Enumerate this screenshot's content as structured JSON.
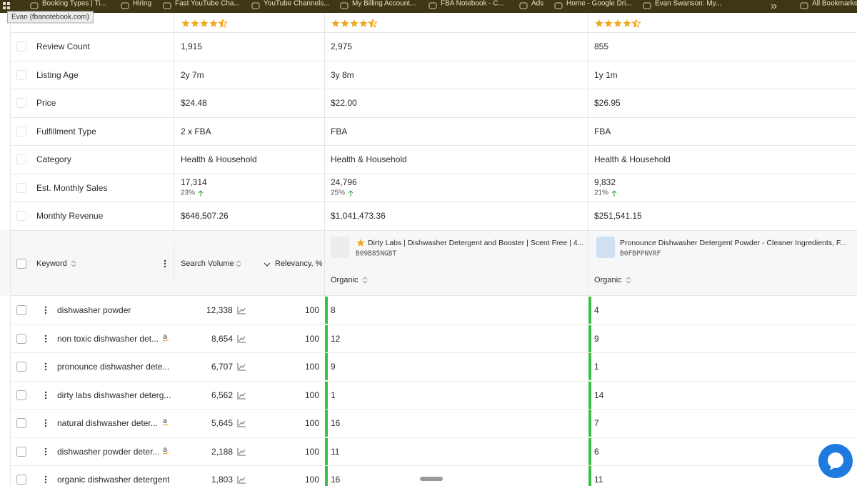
{
  "bookmarks": [
    "Booking Types | Ti...",
    "Hiring",
    "Fast YouTube Cha...",
    "YouTube Channels...",
    "My Billing Account...",
    "FBA Notebook - C...",
    "Ads",
    "Home - Google Dri...",
    "Evan Swanson: My...",
    "All Bookmarks"
  ],
  "tooltip": "Evan (fbanotebook.com)",
  "ratings": [
    "4.5",
    "4.4",
    "4.6"
  ],
  "metrics": [
    {
      "label": "Review Count",
      "values": [
        "1,915",
        "2,975",
        "855"
      ]
    },
    {
      "label": "Listing Age",
      "values": [
        "2y 7m",
        "3y 8m",
        "1y 1m"
      ]
    },
    {
      "label": "Price",
      "values": [
        "$24.48",
        "$22.00",
        "$26.95"
      ]
    },
    {
      "label": "Fulfillment Type",
      "values": [
        "2 x FBA",
        "FBA",
        "FBA"
      ]
    },
    {
      "label": "Category",
      "values": [
        "Health & Household",
        "Health & Household",
        "Health & Household"
      ]
    },
    {
      "label": "Est. Monthly Sales",
      "values": [
        "17,314",
        "24,796",
        "9,832"
      ],
      "changes": [
        "23%",
        "25%",
        "21%"
      ]
    },
    {
      "label": "Monthly Revenue",
      "values": [
        "$646,507.26",
        "$1,041,473.36",
        "$251,541.15"
      ]
    }
  ],
  "columns": {
    "keyword": "Keyword",
    "search_volume": "Search Volume",
    "relevancy": "Relevancy, %"
  },
  "products": [
    {
      "title": "Dirty Labs | Dishwasher Detergent and Booster | Scent Free | 4...",
      "asin": "B09B85NGBT",
      "rank_header": "Organic"
    },
    {
      "title": "Pronounce Dishwasher Detergent Powder - Cleaner Ingredients, F...",
      "asin": "B0FBPPNVRF",
      "rank_header": "Organic"
    }
  ],
  "keywords": [
    {
      "keyword": "dishwasher powder",
      "amazon": false,
      "search_volume": "12,338",
      "relevancy": "100",
      "ranks": [
        "8",
        "4"
      ]
    },
    {
      "keyword": "non toxic dishwasher det...",
      "amazon": true,
      "search_volume": "8,654",
      "relevancy": "100",
      "ranks": [
        "12",
        "9"
      ]
    },
    {
      "keyword": "pronounce dishwasher dete...",
      "amazon": false,
      "search_volume": "6,707",
      "relevancy": "100",
      "ranks": [
        "9",
        "1"
      ]
    },
    {
      "keyword": "dirty labs dishwasher deterg...",
      "amazon": false,
      "search_volume": "6,562",
      "relevancy": "100",
      "ranks": [
        "1",
        "14"
      ]
    },
    {
      "keyword": "natural dishwasher deter...",
      "amazon": true,
      "search_volume": "5,645",
      "relevancy": "100",
      "ranks": [
        "16",
        "7"
      ]
    },
    {
      "keyword": "dishwasher powder deter...",
      "amazon": true,
      "search_volume": "2,188",
      "relevancy": "100",
      "ranks": [
        "11",
        "6"
      ]
    },
    {
      "keyword": "organic dishwasher detergent",
      "amazon": false,
      "search_volume": "1,803",
      "relevancy": "100",
      "ranks": [
        "16",
        "11"
      ]
    }
  ]
}
